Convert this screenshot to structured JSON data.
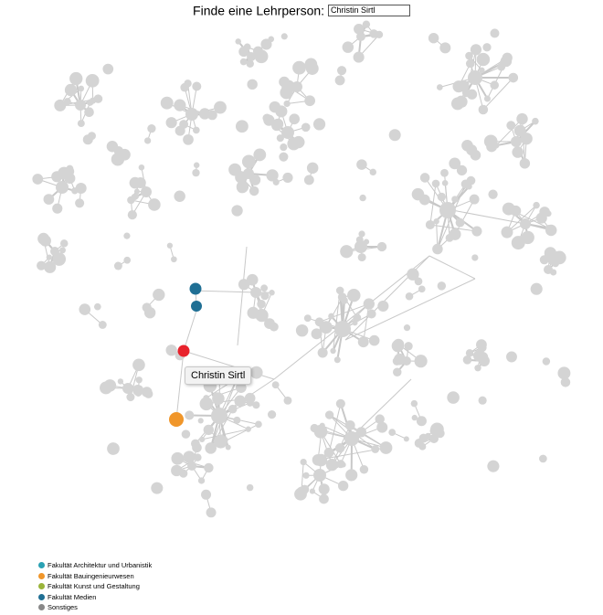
{
  "search": {
    "label": "Finde eine Lehrperson:",
    "value": "Christin Sirtl"
  },
  "tooltip": {
    "text": "Christin Sirtl"
  },
  "colors": {
    "node_default": "#d4d4d4",
    "edge": "#c8c8c8",
    "highlight": "#e8222c",
    "architektur": "#2aa1b3",
    "bauingenieurwesen": "#f0962a",
    "kunst": "#9ab43a",
    "medien": "#1f6f94",
    "sonstiges": "#888888"
  },
  "legend": [
    {
      "label": "Fakultät Architektur und Urbanistik",
      "color": "#2aa1b3"
    },
    {
      "label": "Fakultät Bauingenieurwesen",
      "color": "#f0962a"
    },
    {
      "label": "Fakultät Kunst und Gestaltung",
      "color": "#9ab43a"
    },
    {
      "label": "Fakultät Medien",
      "color": "#1f6f94"
    },
    {
      "label": "Sonstiges",
      "color": "#888888"
    }
  ]
}
